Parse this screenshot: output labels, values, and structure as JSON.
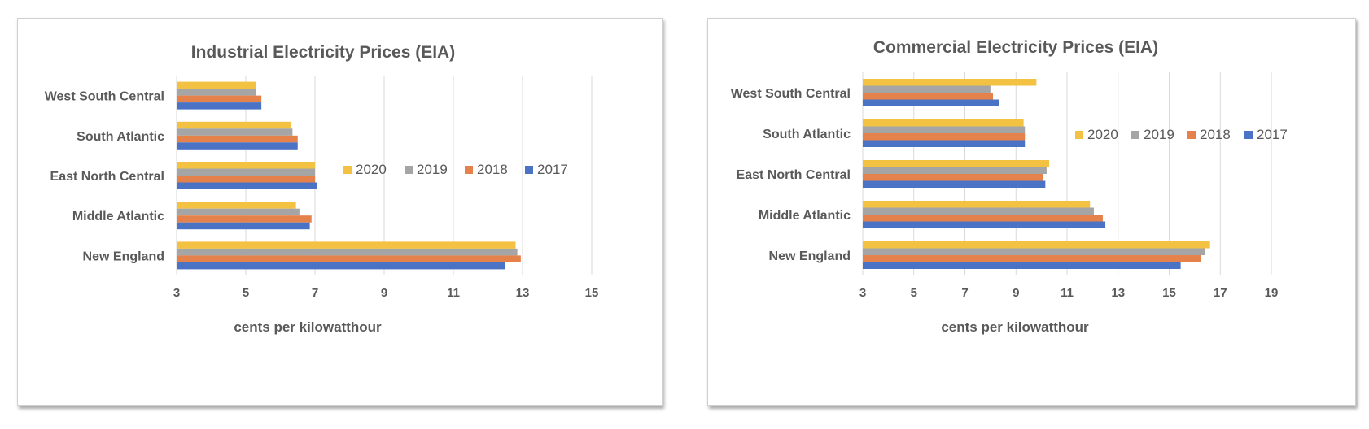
{
  "colors": {
    "2020": "#F4C242",
    "2019": "#A5A5A5",
    "2018": "#E5814A",
    "2017": "#4A73C6"
  },
  "chart_data": [
    {
      "type": "bar",
      "orientation": "horizontal",
      "title": "Industrial Electricity Prices (EIA)",
      "xlabel": "cents per kilowatthour",
      "ylabel": "",
      "xlim": [
        3,
        15
      ],
      "ticks": [
        "3",
        "5",
        "7",
        "9",
        "11",
        "13",
        "15"
      ],
      "grid": true,
      "legend_position": "right-middle",
      "categories": [
        "West South Central",
        "South Atlantic",
        "East North Central",
        "Middle Atlantic",
        "New England"
      ],
      "series": [
        {
          "name": "2020",
          "values": [
            5.3,
            6.3,
            7.0,
            6.45,
            12.8
          ]
        },
        {
          "name": "2019",
          "values": [
            5.3,
            6.35,
            7.0,
            6.55,
            12.85
          ]
        },
        {
          "name": "2018",
          "values": [
            5.45,
            6.5,
            7.0,
            6.9,
            12.95
          ]
        },
        {
          "name": "2017",
          "values": [
            5.45,
            6.5,
            7.05,
            6.85,
            12.5
          ]
        }
      ]
    },
    {
      "type": "bar",
      "orientation": "horizontal",
      "title": "Commercial Electricity Prices (EIA)",
      "xlabel": "cents per kilowatthour",
      "ylabel": "",
      "xlim": [
        3,
        19
      ],
      "ticks": [
        "3",
        "5",
        "7",
        "9",
        "11",
        "13",
        "15",
        "17",
        "19"
      ],
      "grid": true,
      "legend_position": "top-right",
      "categories": [
        "West South Central",
        "South Atlantic",
        "East North Central",
        "Middle Atlantic",
        "New England"
      ],
      "series": [
        {
          "name": "2020",
          "values": [
            9.8,
            9.3,
            10.3,
            11.9,
            16.6
          ]
        },
        {
          "name": "2019",
          "values": [
            8.0,
            9.35,
            10.2,
            12.05,
            16.4
          ]
        },
        {
          "name": "2018",
          "values": [
            8.1,
            9.35,
            10.05,
            12.4,
            16.25
          ]
        },
        {
          "name": "2017",
          "values": [
            8.35,
            9.35,
            10.15,
            12.5,
            15.45
          ]
        }
      ]
    }
  ]
}
